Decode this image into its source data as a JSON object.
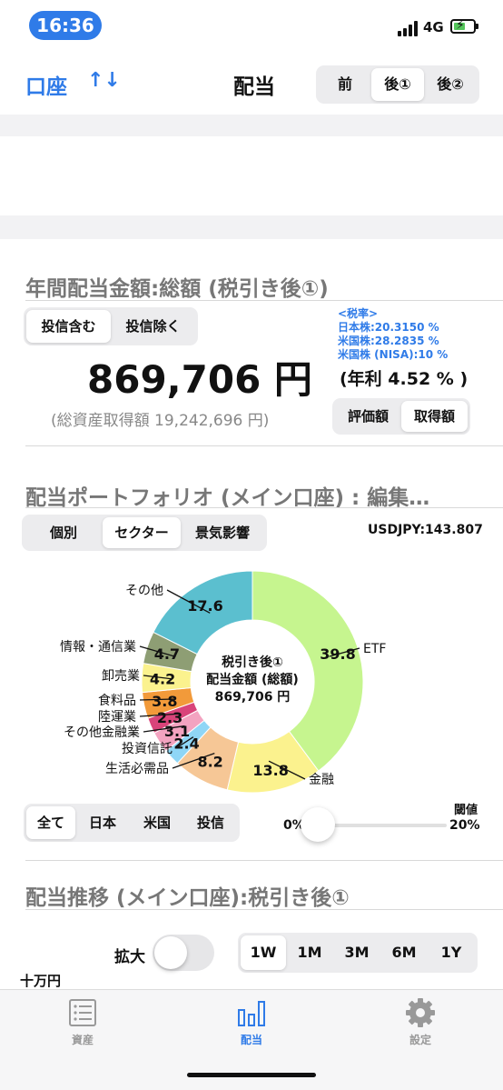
{
  "status_bar": {
    "time": "16:36",
    "network": "4G"
  },
  "header": {
    "account_label": "口座",
    "sort_icon": "↑↓",
    "title": "配当",
    "view_options": [
      {
        "label": "前",
        "selected": false
      },
      {
        "label": "後①",
        "selected": true
      },
      {
        "label": "後②",
        "selected": false
      }
    ]
  },
  "annual": {
    "title": "年間配当金額:総額 (税引き後①)",
    "fund_toggle": [
      {
        "label": "投信含む",
        "selected": true
      },
      {
        "label": "投信除く",
        "selected": false
      }
    ],
    "tax_rates": {
      "heading": "<税率>",
      "japan": "日本株:20.3150 %",
      "us": "米国株:28.2835 %",
      "us_nisa": "米国株 (NISA):10 %"
    },
    "amount": "869,706 円",
    "yield": "(年利 4.52 % )",
    "acquisition_total": "(総資産取得額 19,242,696 円)",
    "basis_toggle": [
      {
        "label": "評価額",
        "selected": false
      },
      {
        "label": "取得額",
        "selected": true
      }
    ]
  },
  "portfolio": {
    "title": "配当ポートフォリオ (メイン口座) : 編集…",
    "view_tabs": [
      {
        "label": "個別",
        "selected": false
      },
      {
        "label": "セクター",
        "selected": true
      },
      {
        "label": "景気影響",
        "selected": false
      }
    ],
    "fx_rate": "USDJPY:143.807",
    "center": {
      "line1": "税引き後①",
      "line2": "配当金額 (総額)",
      "line3": "869,706 円"
    },
    "region_filter": [
      {
        "label": "全て",
        "selected": true
      },
      {
        "label": "日本",
        "selected": false
      },
      {
        "label": "米国",
        "selected": false
      },
      {
        "label": "投信",
        "selected": false
      }
    ],
    "threshold": {
      "label": "閾値",
      "min": "0%",
      "max": "20%",
      "value": 0.05
    }
  },
  "chart_data": {
    "type": "pie",
    "style": "donut",
    "unit": "%",
    "slices": [
      {
        "label": "ETF",
        "value": 39.8,
        "color": "#c6f58f"
      },
      {
        "label": "金融",
        "value": 13.8,
        "color": "#fbf28e"
      },
      {
        "label": "生活必需品",
        "value": 8.2,
        "color": "#f6c796"
      },
      {
        "label": "投資信託",
        "value": 2.4,
        "color": "#8fd6f6"
      },
      {
        "label": "その他金融業",
        "value": 3.1,
        "color": "#f3a3c0"
      },
      {
        "label": "陸運業",
        "value": 2.3,
        "color": "#d9447a"
      },
      {
        "label": "食料品",
        "value": 3.8,
        "color": "#f29a3a"
      },
      {
        "label": "卸売業",
        "value": 4.2,
        "color": "#fbf28e"
      },
      {
        "label": "情報・通信業",
        "value": 4.7,
        "color": "#8e9e74"
      },
      {
        "label": "その他",
        "value": 17.6,
        "color": "#5bbfcf"
      }
    ]
  },
  "trend": {
    "title": "配当推移 (メイン口座):税引き後①",
    "expand_label": "拡大",
    "expand_on": false,
    "ranges": [
      {
        "label": "1W",
        "selected": true
      },
      {
        "label": "1M",
        "selected": false
      },
      {
        "label": "3M",
        "selected": false
      },
      {
        "label": "6M",
        "selected": false
      },
      {
        "label": "1Y",
        "selected": false
      }
    ],
    "unit_label": "十万円"
  },
  "tab_bar": {
    "items": [
      {
        "label": "資産",
        "icon": "list-icon",
        "active": false
      },
      {
        "label": "配当",
        "icon": "bar-chart-icon",
        "active": true
      },
      {
        "label": "設定",
        "icon": "gear-icon",
        "active": false
      }
    ]
  }
}
